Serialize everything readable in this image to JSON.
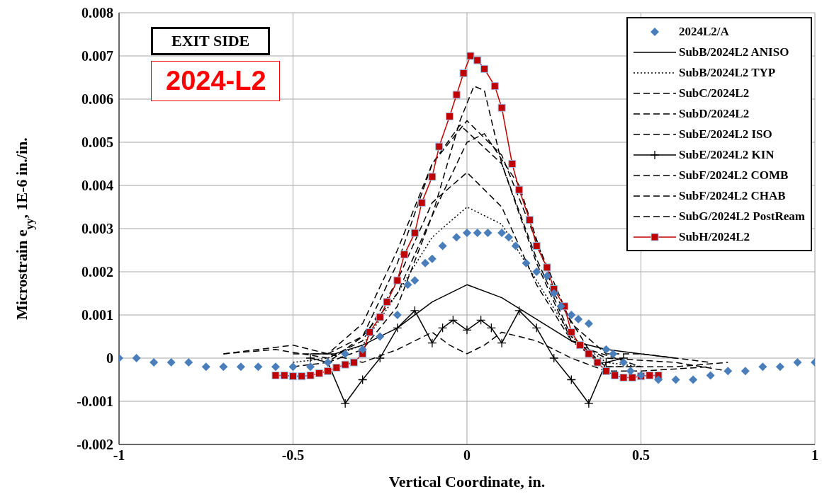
{
  "chart_data": {
    "type": "line",
    "xlabel": "Vertical Coordinate, in.",
    "ylabel": "Microstrain e$_{yy}$, 1E-6 in./in.",
    "annotations": [
      "EXIT  SIDE",
      "2024-L2"
    ],
    "xlim": [
      -1,
      1
    ],
    "xticks": [
      -1,
      -0.5,
      0,
      0.5,
      1
    ],
    "ylim": [
      -0.002,
      0.008
    ],
    "yticks": [
      -0.002,
      -0.001,
      0,
      0.001,
      0.002,
      0.003,
      0.004,
      0.005,
      0.006,
      0.007,
      0.008
    ],
    "grid": true,
    "legend": "top right",
    "series": [
      {
        "name": "2024L2/A",
        "type": "scatter",
        "marker": "diamond",
        "color": "#4a7ebb",
        "x": [
          -1,
          -0.95,
          -0.9,
          -0.85,
          -0.8,
          -0.75,
          -0.7,
          -0.65,
          -0.6,
          -0.55,
          -0.5,
          -0.45,
          -0.4,
          -0.35,
          -0.3,
          -0.25,
          -0.2,
          -0.17,
          -0.15,
          -0.12,
          -0.1,
          -0.07,
          -0.03,
          0,
          0.03,
          0.06,
          0.1,
          0.12,
          0.14,
          0.17,
          0.2,
          0.23,
          0.25,
          0.27,
          0.3,
          0.32,
          0.35,
          0.4,
          0.42,
          0.45,
          0.47,
          0.5,
          0.55,
          0.6,
          0.65,
          0.7,
          0.75,
          0.8,
          0.85,
          0.9,
          0.95,
          1
        ],
        "values": [
          0,
          0,
          -0.0001,
          -0.0001,
          -0.0001,
          -0.0002,
          -0.0002,
          -0.0002,
          -0.0002,
          -0.0002,
          -0.0002,
          -0.0002,
          -0.0001,
          0.0001,
          0.0002,
          0.0005,
          0.001,
          0.0017,
          0.0018,
          0.0022,
          0.0023,
          0.0026,
          0.0028,
          0.0029,
          0.0029,
          0.0029,
          0.0029,
          0.0028,
          0.0026,
          0.0022,
          0.002,
          0.0019,
          0.0015,
          0.0012,
          0.001,
          0.0009,
          0.0008,
          0.0002,
          0.0001,
          -0.0001,
          -0.0003,
          -0.0004,
          -0.0005,
          -0.0005,
          -0.0005,
          -0.0004,
          -0.0003,
          -0.0003,
          -0.0002,
          -0.0002,
          -0.0001,
          -0.0001
        ]
      },
      {
        "name": "SubB/2024L2 ANISO",
        "line_style": "solid",
        "marker": "none",
        "color": "#000000",
        "x": [
          -0.45,
          -0.38,
          -0.3,
          -0.2,
          -0.1,
          0,
          0.1,
          0.2,
          0.3,
          0.4,
          0.5,
          0.6
        ],
        "values": [
          0.0001,
          0.0001,
          0.0003,
          0.0007,
          0.0013,
          0.0017,
          0.0014,
          0.0009,
          0.0004,
          0.0002,
          0.0001,
          0
        ]
      },
      {
        "name": "SubB/2024L2 TYP",
        "line_style": "dotted",
        "marker": "none",
        "color": "#000000",
        "x": [
          -0.5,
          -0.4,
          -0.3,
          -0.2,
          -0.1,
          0,
          0.1,
          0.2,
          0.3,
          0.4,
          0.5
        ],
        "values": [
          -0.0001,
          0,
          0.0003,
          0.0015,
          0.0028,
          0.0035,
          0.0031,
          0.0018,
          0.0005,
          -0.0001,
          -0.0002
        ]
      },
      {
        "name": "SubC/2024L2",
        "line_style": "dashed",
        "marker": "none",
        "color": "#000000",
        "x": [
          -0.5,
          -0.4,
          -0.3,
          -0.2,
          -0.1,
          0,
          0.1,
          0.2,
          0.3,
          0.4,
          0.5,
          0.7
        ],
        "values": [
          0.0001,
          0.0001,
          0.0008,
          0.0025,
          0.0045,
          0.0055,
          0.0047,
          0.0027,
          0.0008,
          0.0001,
          0.0001,
          -0.0001
        ]
      },
      {
        "name": "SubD/2024L2",
        "line_style": "dashed",
        "marker": "none",
        "color": "#000000",
        "x": [
          -0.4,
          -0.3,
          -0.2,
          -0.1,
          0,
          0.05,
          0.15,
          0.25,
          0.35,
          0.5
        ],
        "values": [
          -0.0001,
          0.0002,
          0.0012,
          0.0033,
          0.005,
          0.0052,
          0.004,
          0.0015,
          0.0002,
          -0.0002
        ]
      },
      {
        "name": "SubE/2024L2 ISO",
        "line_style": "dashed",
        "marker": "none",
        "color": "#000000",
        "x": [
          -0.4,
          -0.3,
          -0.2,
          -0.1,
          -0.02,
          0.02,
          0.05,
          0.1,
          0.2,
          0.3,
          0.4,
          0.5
        ],
        "values": [
          0.0001,
          0.0005,
          0.0015,
          0.0033,
          0.0055,
          0.0063,
          0.0062,
          0.0045,
          0.0023,
          0.0005,
          -0.0002,
          -0.0002
        ]
      },
      {
        "name": "SubE/2024L2 KIN",
        "line_style": "solid",
        "marker": "cross",
        "color": "#000000",
        "x": [
          -0.45,
          -0.4,
          -0.35,
          -0.3,
          -0.25,
          -0.2,
          -0.15,
          -0.1,
          -0.07,
          -0.04,
          0,
          0.04,
          0.07,
          0.1,
          0.15,
          0.2,
          0.25,
          0.3,
          0.35,
          0.4,
          0.45
        ],
        "values": [
          0,
          -0.0001,
          -0.00105,
          -0.0005,
          0,
          0.0007,
          0.0011,
          0.00035,
          0.0007,
          0.00088,
          0.00065,
          0.00088,
          0.0007,
          0.00035,
          0.0011,
          0.0007,
          0,
          -0.0005,
          -0.00105,
          -0.0001,
          0
        ]
      },
      {
        "name": "SubF/2024L2 COMB",
        "line_style": "dashed",
        "marker": "none",
        "color": "#000000",
        "x": [
          -0.7,
          -0.55,
          -0.4,
          -0.3,
          -0.2,
          -0.1,
          0,
          0.1,
          0.2,
          0.3,
          0.4,
          0.6,
          0.75
        ],
        "values": [
          0.0001,
          0.0002,
          0,
          0.0004,
          0.0018,
          0.0036,
          0.0043,
          0.0035,
          0.0017,
          0.0004,
          0,
          -0.0001,
          -0.0003
        ]
      },
      {
        "name": "SubF/2024L2 CHAB",
        "line_style": "dashed",
        "marker": "none",
        "color": "#000000",
        "x": [
          -0.5,
          -0.4,
          -0.3,
          -0.2,
          -0.1,
          -0.02,
          0.1,
          0.2,
          0.3,
          0.4,
          0.6,
          0.75
        ],
        "values": [
          -0.0002,
          -0.0001,
          0.0005,
          0.0022,
          0.0045,
          0.0054,
          0.0045,
          0.0022,
          0.0004,
          -0.0002,
          -0.0002,
          -0.0001
        ]
      },
      {
        "name": "SubG/2024L2 PostReam",
        "line_style": "dashed",
        "marker": "none",
        "color": "#000000",
        "x": [
          -0.7,
          -0.5,
          -0.4,
          -0.3,
          -0.2,
          -0.1,
          -0.05,
          0,
          0.05,
          0.1,
          0.2,
          0.3,
          0.4,
          0.5,
          0.7
        ],
        "values": [
          0.0001,
          0.0003,
          0.0001,
          -0.0001,
          0.0002,
          0.0006,
          0.0003,
          0.0001,
          0.0003,
          0.0006,
          0.0004,
          0,
          -0.0003,
          -0.0003,
          -0.0002
        ]
      },
      {
        "name": "SubH/2024L2",
        "line_style": "solid",
        "marker": "square",
        "color": "#c00000",
        "x": [
          -0.55,
          -0.525,
          -0.5,
          -0.475,
          -0.45,
          -0.425,
          -0.4,
          -0.375,
          -0.35,
          -0.325,
          -0.3,
          -0.28,
          -0.25,
          -0.23,
          -0.2,
          -0.18,
          -0.15,
          -0.13,
          -0.1,
          -0.08,
          -0.05,
          -0.03,
          -0.01,
          0.01,
          0.03,
          0.05,
          0.08,
          0.1,
          0.13,
          0.15,
          0.18,
          0.2,
          0.23,
          0.25,
          0.28,
          0.3,
          0.325,
          0.35,
          0.375,
          0.4,
          0.425,
          0.45,
          0.475,
          0.5,
          0.525,
          0.55
        ],
        "values": [
          -0.0004,
          -0.0004,
          -0.00042,
          -0.00042,
          -0.0004,
          -0.00035,
          -0.0003,
          -0.00022,
          -0.00015,
          -0.0001,
          0.0001,
          0.0006,
          0.00095,
          0.0013,
          0.0018,
          0.0024,
          0.0029,
          0.0036,
          0.0042,
          0.0049,
          0.0056,
          0.0061,
          0.0066,
          0.007,
          0.0069,
          0.0067,
          0.0063,
          0.0058,
          0.0045,
          0.0039,
          0.0032,
          0.0026,
          0.0021,
          0.0016,
          0.0012,
          0.0006,
          0.0003,
          0.0001,
          -0.0001,
          -0.0003,
          -0.0004,
          -0.00045,
          -0.00045,
          -0.00042,
          -0.0004,
          -0.0004
        ]
      }
    ]
  }
}
